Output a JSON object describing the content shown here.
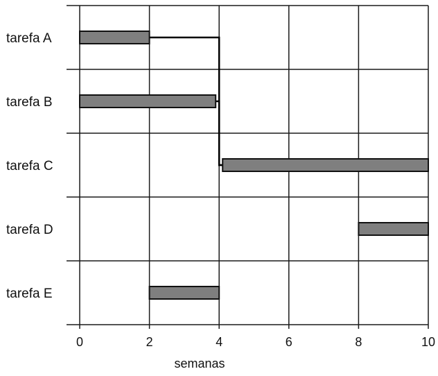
{
  "chart_data": {
    "type": "bar",
    "subtype": "gantt",
    "xlabel": "semanas",
    "xlim": [
      0,
      10
    ],
    "xticks": [
      0,
      2,
      4,
      6,
      8,
      10
    ],
    "grid": true,
    "bar_color": "#7f7f7f",
    "line_color": "#000000",
    "tasks": [
      {
        "label": "tarefa A",
        "start": 0,
        "end": 2
      },
      {
        "label": "tarefa B",
        "start": 0,
        "end": 3.9
      },
      {
        "label": "tarefa C",
        "start": 4.1,
        "end": 10
      },
      {
        "label": "tarefa D",
        "start": 8,
        "end": 10
      },
      {
        "label": "tarefa E",
        "start": 2,
        "end": 4
      }
    ],
    "dependencies": [
      {
        "from": "tarefa A",
        "to": "tarefa C"
      },
      {
        "from": "tarefa B",
        "to": "tarefa C"
      }
    ]
  }
}
